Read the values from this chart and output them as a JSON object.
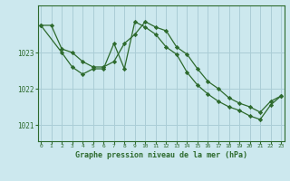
{
  "title": "Graphe pression niveau de la mer (hPa)",
  "background_color": "#cce8ee",
  "grid_color": "#aacdd6",
  "line_color": "#2d6a2d",
  "marker_color": "#2d6a2d",
  "xlim": [
    -0.3,
    23.3
  ],
  "ylim": [
    1020.55,
    1024.3
  ],
  "yticks": [
    1021,
    1022,
    1023
  ],
  "xticks": [
    0,
    1,
    2,
    3,
    4,
    5,
    6,
    7,
    8,
    9,
    10,
    11,
    12,
    13,
    14,
    15,
    16,
    17,
    18,
    19,
    20,
    21,
    22,
    23
  ],
  "series1_x": [
    0,
    1,
    2,
    3,
    4,
    5,
    6,
    7,
    8,
    9,
    10,
    11,
    12,
    13,
    14,
    15,
    16,
    17,
    18,
    19,
    20,
    21,
    22,
    23
  ],
  "series1_y": [
    1023.75,
    1023.75,
    1023.1,
    1023.0,
    1022.75,
    1022.6,
    1022.6,
    1022.75,
    1023.25,
    1023.5,
    1023.85,
    1023.7,
    1023.6,
    1023.15,
    1022.95,
    1022.55,
    1022.2,
    1022.0,
    1021.75,
    1021.6,
    1021.5,
    1021.35,
    1021.65,
    1021.8
  ],
  "series2_x": [
    0,
    2,
    3,
    4,
    5,
    6,
    7,
    8,
    9,
    10,
    11,
    12,
    13,
    14,
    15,
    16,
    17,
    18,
    19,
    20,
    21,
    22,
    23
  ],
  "series2_y": [
    1023.75,
    1023.0,
    1022.6,
    1022.4,
    1022.55,
    1022.55,
    1023.25,
    1022.55,
    1023.85,
    1023.7,
    1023.5,
    1023.15,
    1022.95,
    1022.45,
    1022.1,
    1021.85,
    1021.65,
    1021.5,
    1021.4,
    1021.25,
    1021.15,
    1021.55,
    1021.8
  ]
}
